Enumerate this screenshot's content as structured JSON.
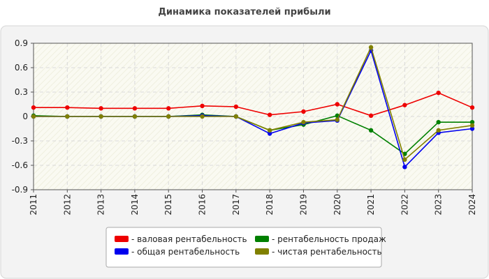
{
  "chart_data": {
    "type": "line",
    "title": "Динамика показателей прибыли",
    "xlabel": "",
    "ylabel": "",
    "categories": [
      "2011",
      "2012",
      "2013",
      "2014",
      "2015",
      "2016",
      "2017",
      "2018",
      "2019",
      "2020",
      "2021",
      "2022",
      "2023",
      "2024"
    ],
    "ylim": [
      -0.9,
      0.9
    ],
    "yticks": [
      0.9,
      0.6,
      0.3,
      0,
      -0.3,
      -0.6,
      -0.9
    ],
    "grid": true,
    "legend_position": "bottom",
    "series": [
      {
        "name": "- валовая рентабельность",
        "color": "#ee0000",
        "values": [
          0.11,
          0.11,
          0.1,
          0.1,
          0.1,
          0.13,
          0.12,
          0.02,
          0.06,
          0.15,
          0.01,
          0.14,
          0.29,
          0.11
        ]
      },
      {
        "name": "- рентабельность продаж",
        "color": "#008000",
        "values": [
          0.01,
          0.0,
          0.0,
          0.0,
          0.0,
          0.02,
          0.0,
          -0.17,
          -0.1,
          0.01,
          -0.17,
          -0.46,
          -0.07,
          -0.07
        ]
      },
      {
        "name": "- общая рентабельность",
        "color": "#0000ee",
        "values": [
          0.0,
          0.0,
          0.0,
          0.0,
          0.0,
          0.01,
          0.0,
          -0.21,
          -0.08,
          -0.05,
          0.81,
          -0.62,
          -0.2,
          -0.15
        ]
      },
      {
        "name": "- чистая рентабельность",
        "color": "#808000",
        "values": [
          0.0,
          0.0,
          0.0,
          0.0,
          0.0,
          0.0,
          0.0,
          -0.17,
          -0.07,
          -0.04,
          0.85,
          -0.53,
          -0.17,
          -0.11
        ]
      }
    ],
    "legend_order": [
      0,
      2,
      1,
      3
    ]
  }
}
